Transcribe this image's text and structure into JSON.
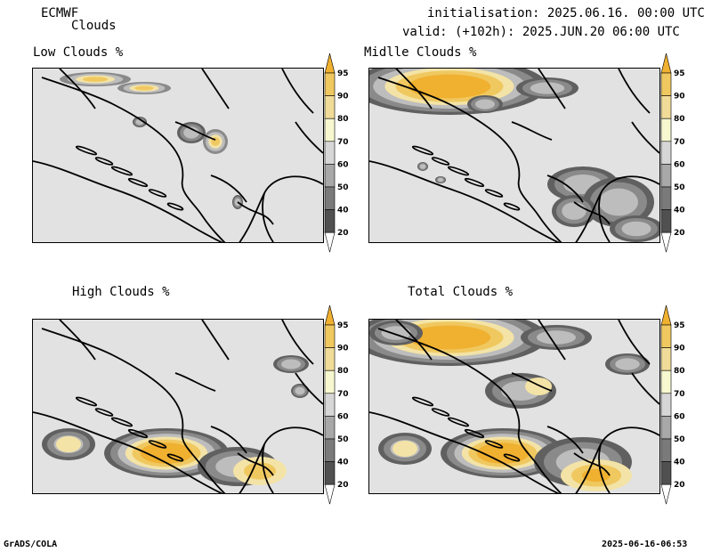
{
  "header": {
    "model": "ECMWF",
    "product": "Clouds",
    "init": "initialisation: 2025.06.16. 00:00 UTC",
    "valid": "valid: (+102h): 2025.JUN.20 06:00 UTC"
  },
  "panels": [
    {
      "title": "Low Clouds %"
    },
    {
      "title": "Midlle Clouds %"
    },
    {
      "title": "High Clouds %"
    },
    {
      "title": "Total Clouds %"
    }
  ],
  "colorbar": {
    "levels": [
      "95",
      "90",
      "80",
      "70",
      "60",
      "50",
      "40",
      "20"
    ],
    "colors": [
      "#f0b030",
      "#f0c860",
      "#f0dc98",
      "#f8f8d0",
      "#d6d6d6",
      "#a8a8a8",
      "#7a7a7a",
      "#505050",
      "#ffffff"
    ]
  },
  "footer": {
    "left": "GrADS/COLA",
    "right": "2025-06-16-06:53"
  }
}
